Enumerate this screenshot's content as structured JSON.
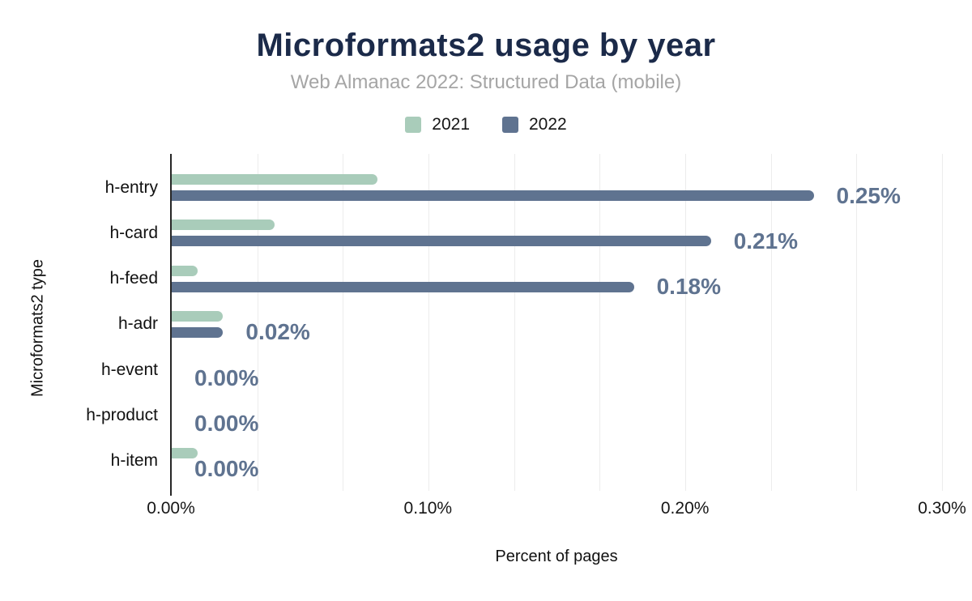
{
  "header": {
    "title": "Microformats2 usage by year",
    "subtitle": "Web Almanac 2022: Structured Data (mobile)"
  },
  "legend": [
    {
      "label": "2021",
      "color": "#a9ccba"
    },
    {
      "label": "2022",
      "color": "#5f7390"
    }
  ],
  "axes": {
    "x_title": "Percent of pages",
    "y_title": "Microformats2 type",
    "x_ticks": [
      "0.00%",
      "0.10%",
      "0.20%",
      "0.30%"
    ]
  },
  "chart_data": {
    "type": "bar",
    "orientation": "horizontal",
    "title": "Microformats2 usage by year",
    "subtitle": "Web Almanac 2022: Structured Data (mobile)",
    "xlabel": "Percent of pages",
    "ylabel": "Microformats2 type",
    "xlim": [
      0,
      0.3
    ],
    "x_tick_labels": [
      "0.00%",
      "0.10%",
      "0.20%",
      "0.30%"
    ],
    "grid": "vertical-minor-every-0.0333",
    "legend_position": "top",
    "categories": [
      "h-entry",
      "h-card",
      "h-feed",
      "h-adr",
      "h-event",
      "h-product",
      "h-item"
    ],
    "series": [
      {
        "name": "2021",
        "color": "#a9ccba",
        "unit": "%",
        "values": [
          0.08,
          0.04,
          0.01,
          0.02,
          0,
          0,
          0.01
        ]
      },
      {
        "name": "2022",
        "color": "#5f7390",
        "unit": "%",
        "values": [
          0.25,
          0.21,
          0.18,
          0.02,
          0,
          0,
          0
        ],
        "data_labels": [
          "0.25%",
          "0.21%",
          "0.18%",
          "0.02%",
          "0.00%",
          "0.00%",
          "0.00%"
        ]
      }
    ]
  },
  "colors": {
    "title": "#1b2a49",
    "subtitle": "#a5a5a5",
    "data_label": "#5f7390",
    "gridline": "#ececec",
    "axis": "#262626",
    "background": "#ffffff"
  }
}
